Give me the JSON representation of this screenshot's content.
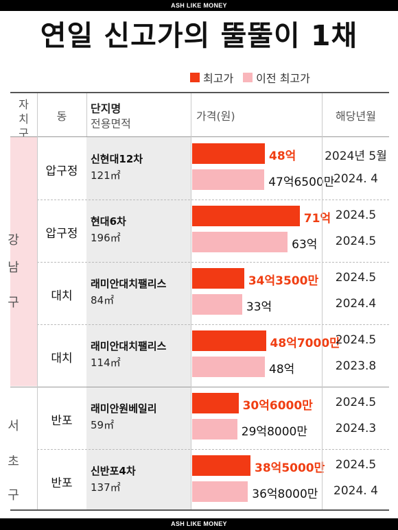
{
  "header": {
    "brand_top": "ASH LIKE MONEY"
  },
  "footer": {
    "brand_bottom": "ASH LIKE MONEY"
  },
  "chart_data": {
    "type": "bar",
    "title": "연일 신고가의 뚤뚤이 1채",
    "legend": {
      "position": "top-right",
      "current_label": "최고가",
      "previous_label": "이전 최고가"
    },
    "columns": {
      "district": "자치구",
      "dong": "동",
      "complex_line1": "단지명",
      "complex_line2": "전용면적",
      "price": "가격(원)",
      "year_month": "해당년월"
    },
    "groups": [
      {
        "district_chars": [
          "강",
          "남",
          "구"
        ],
        "rows": [
          0,
          1,
          2,
          3
        ]
      },
      {
        "district_chars": [
          "서",
          "초",
          "구"
        ],
        "rows": [
          4,
          5
        ]
      }
    ],
    "series": [
      {
        "name": "최고가",
        "values": [
          48,
          71,
          34.35,
          48.7,
          30.6,
          38.5
        ]
      },
      {
        "name": "이전 최고가",
        "values": [
          47.65,
          63,
          33,
          48,
          29.8,
          36.8
        ]
      }
    ],
    "rows": [
      {
        "dong": "압구정",
        "complex": "신현대12차",
        "area": "121㎡",
        "current_label": "48억",
        "previous_label": "47억6500만",
        "current_date": "2024년 5월",
        "previous_date": "2024. 4"
      },
      {
        "dong": "압구정",
        "complex": "현대6차",
        "area": "196㎡",
        "current_label": "71억",
        "previous_label": "63억",
        "current_date": "2024.5",
        "previous_date": "2024.5"
      },
      {
        "dong": "대치",
        "complex": "래미안대치팰리스",
        "area": "84㎡",
        "current_label": "34억3500만",
        "previous_label": "33억",
        "current_date": "2024.5",
        "previous_date": "2024.4"
      },
      {
        "dong": "대치",
        "complex": "래미안대치팰리스",
        "area": "114㎡",
        "current_label": "48억7000만",
        "previous_label": "48억",
        "current_date": "2024.5",
        "previous_date": "2023.8"
      },
      {
        "dong": "반포",
        "complex": "래미안원베일리",
        "area": "59㎡",
        "current_label": "30억6000만",
        "previous_label": "29억8000만",
        "current_date": "2024.5",
        "previous_date": "2024.3"
      },
      {
        "dong": "반포",
        "complex": "신반포4차",
        "area": "137㎡",
        "current_label": "38억5000만",
        "previous_label": "36억8000만",
        "current_date": "2024.5",
        "previous_date": "2024. 4"
      }
    ],
    "colors": {
      "current": "#f23a14",
      "previous": "#f9b6bb",
      "gangnam_band": "#fbdde0"
    }
  }
}
